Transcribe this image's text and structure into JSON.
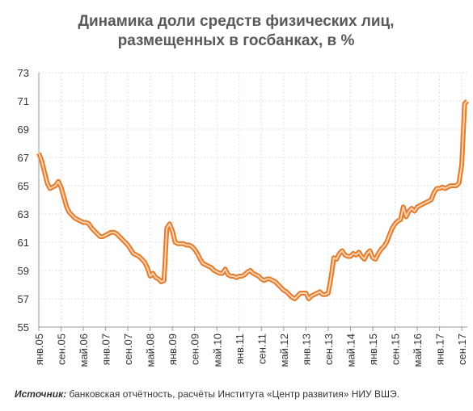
{
  "chart_data": {
    "type": "line",
    "title": [
      "Динамика доли средств физических лиц,",
      "размещенных в госбанках, в %"
    ],
    "categories": [
      "янв.05",
      null,
      null,
      null,
      null,
      null,
      null,
      null,
      "сен.05",
      null,
      null,
      null,
      null,
      null,
      null,
      null,
      "май.06",
      null,
      null,
      null,
      null,
      null,
      null,
      null,
      "янв.07",
      null,
      null,
      null,
      null,
      null,
      null,
      null,
      "сен.07",
      null,
      null,
      null,
      null,
      null,
      null,
      null,
      "май.08",
      null,
      null,
      null,
      null,
      null,
      null,
      null,
      "янв.09",
      null,
      null,
      null,
      null,
      null,
      null,
      null,
      "сен.09",
      null,
      null,
      null,
      null,
      null,
      null,
      null,
      "май.10",
      null,
      null,
      null,
      null,
      null,
      null,
      null,
      "янв.11",
      null,
      null,
      null,
      null,
      null,
      null,
      null,
      "сен.11",
      null,
      null,
      null,
      null,
      null,
      null,
      null,
      "май.12",
      null,
      null,
      null,
      null,
      null,
      null,
      null,
      "янв.13",
      null,
      null,
      null,
      null,
      null,
      null,
      null,
      "сен.13",
      null,
      null,
      null,
      null,
      null,
      null,
      null,
      "май.14",
      null,
      null,
      null,
      null,
      null,
      null,
      null,
      "янв.15",
      null,
      null,
      null,
      null,
      null,
      null,
      null,
      "сен.15",
      null,
      null,
      null,
      null,
      null,
      null,
      null,
      "май.16",
      null,
      null,
      null,
      null,
      null,
      null,
      null,
      "янв.17",
      null,
      null,
      null,
      null,
      null,
      null,
      null,
      "сен.17",
      null,
      null
    ],
    "values": [
      67.3,
      66.8,
      66.0,
      65.2,
      64.8,
      64.9,
      65.0,
      65.3,
      64.9,
      64.2,
      63.5,
      63.1,
      62.9,
      62.7,
      62.6,
      62.5,
      62.4,
      62.4,
      62.3,
      62.0,
      61.8,
      61.6,
      61.4,
      61.4,
      61.5,
      61.6,
      61.7,
      61.7,
      61.6,
      61.4,
      61.2,
      61.0,
      60.8,
      60.5,
      60.2,
      60.1,
      60.0,
      59.8,
      59.6,
      59.2,
      58.6,
      58.8,
      58.5,
      58.4,
      58.2,
      58.3,
      62.0,
      62.3,
      61.8,
      61.0,
      60.9,
      60.9,
      60.9,
      60.8,
      60.8,
      60.7,
      60.5,
      60.2,
      59.8,
      59.5,
      59.4,
      59.3,
      59.2,
      59.0,
      58.9,
      58.8,
      58.8,
      59.1,
      58.7,
      58.6,
      58.6,
      58.5,
      58.6,
      58.6,
      58.7,
      58.9,
      59.0,
      58.8,
      58.7,
      58.6,
      58.4,
      58.3,
      58.4,
      58.4,
      58.3,
      58.2,
      58.0,
      57.8,
      57.6,
      57.5,
      57.3,
      57.1,
      57.0,
      57.2,
      57.4,
      57.4,
      57.4,
      57.0,
      57.2,
      57.3,
      57.4,
      57.5,
      57.3,
      57.3,
      57.4,
      58.5,
      59.9,
      59.8,
      60.2,
      60.4,
      60.1,
      60.0,
      60.0,
      60.2,
      60.1,
      60.3,
      60.0,
      59.8,
      60.2,
      60.4,
      59.9,
      59.8,
      60.2,
      60.5,
      60.7,
      61.0,
      61.5,
      62.0,
      62.3,
      62.5,
      62.6,
      63.5,
      62.8,
      63.2,
      63.4,
      63.2,
      63.5,
      63.6,
      63.7,
      63.8,
      63.9,
      64.0,
      64.5,
      64.8,
      64.8,
      64.9,
      64.8,
      64.9,
      65.0,
      65.0,
      65.0,
      65.2,
      66.5,
      70.8,
      71.0
    ],
    "color": "#e37b2c",
    "ylim": [
      55,
      73
    ],
    "yticks": [
      55,
      57,
      59,
      61,
      63,
      65,
      67,
      69,
      71,
      73
    ],
    "grid": true,
    "source": {
      "label": "Источник:",
      "text": " банковская отчётность, расчёты Института «Центр развития» НИУ ВШЭ."
    }
  }
}
